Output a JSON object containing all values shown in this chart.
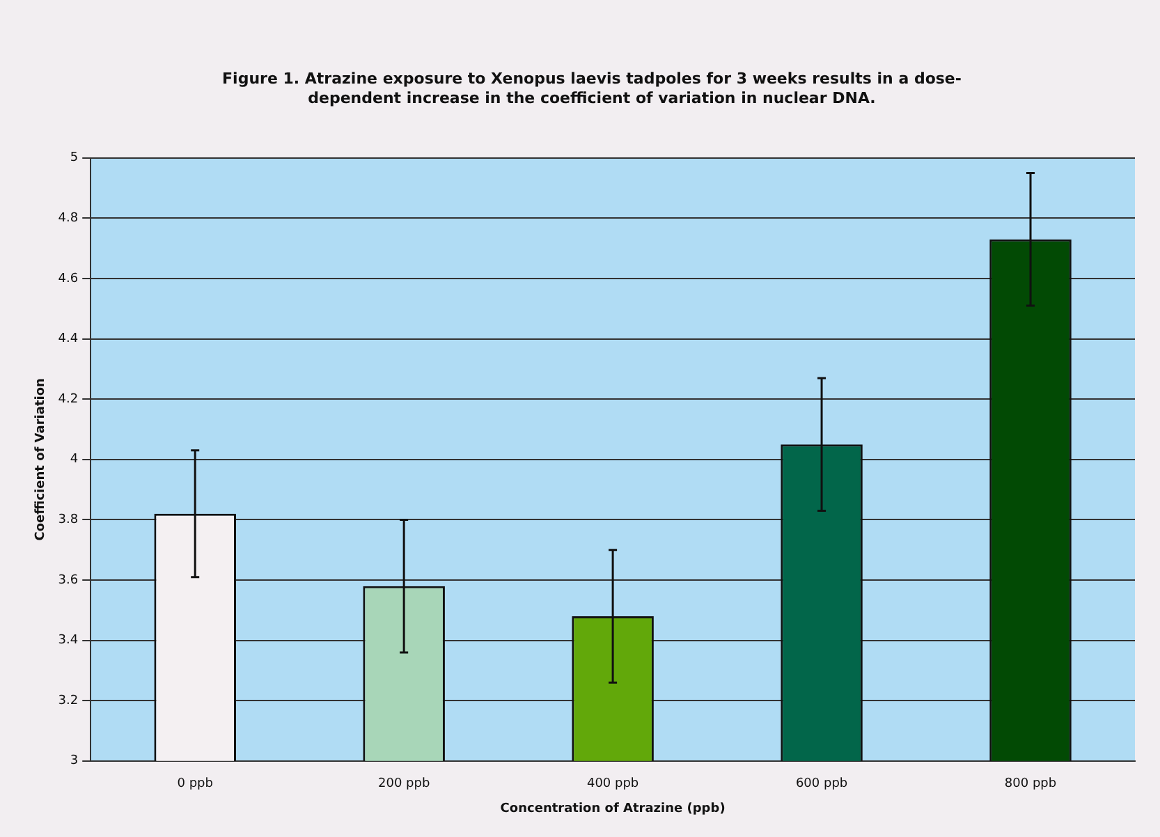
{
  "chart_data": {
    "type": "bar",
    "title": "Figure 1. Atrazine exposure to Xenopus laevis tadpoles for 3 weeks results in a dose-dependent increase in the coefficient of variation in nuclear DNA.",
    "xlabel": "Concentration of Atrazine (ppb)",
    "ylabel": "Coefficient of Variation",
    "categories": [
      "0 ppb",
      "200 ppb",
      "400 ppb",
      "600 ppb",
      "800 ppb"
    ],
    "values": [
      3.82,
      3.58,
      3.48,
      4.05,
      4.73
    ],
    "errors": [
      0.21,
      0.22,
      0.22,
      0.22,
      0.22
    ],
    "colors": [
      "#f4f0f2",
      "#a8d6b8",
      "#62a80a",
      "#02664a",
      "#024a04"
    ],
    "ylim": [
      3,
      5
    ],
    "yticks": [
      3,
      3.2,
      3.4,
      3.6,
      3.8,
      4,
      4.2,
      4.4,
      4.6,
      4.8,
      5
    ],
    "grid": "y"
  }
}
